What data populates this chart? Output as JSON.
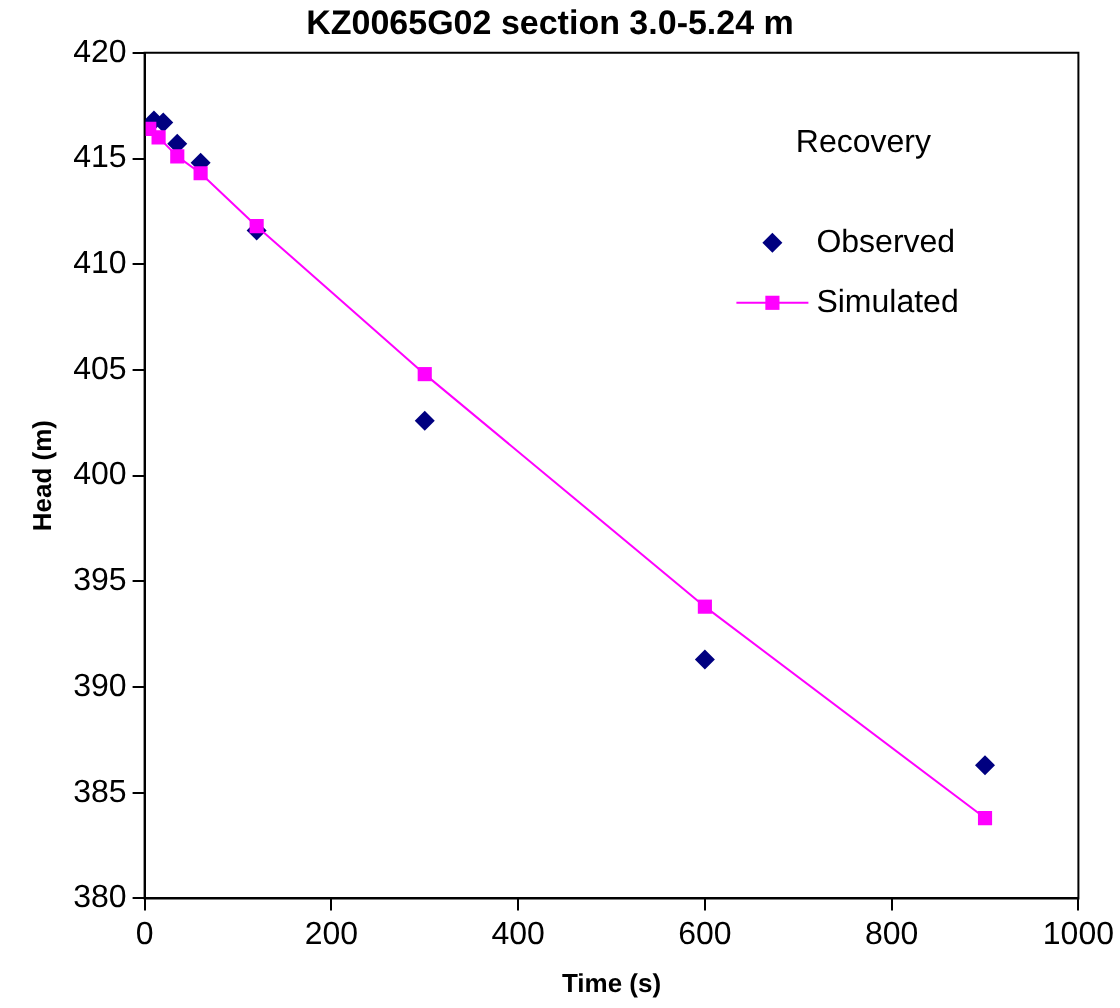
{
  "chart_data": {
    "type": "line",
    "title": "KZ0065G02 section 3.0-5.24 m",
    "xlabel": "Time (s)",
    "ylabel": "Head (m)",
    "legend_title": "Recovery",
    "legend": "top right",
    "grid": false,
    "xlim": [
      0,
      1000
    ],
    "xticks": [
      0,
      200,
      400,
      600,
      800,
      1000
    ],
    "ylim": [
      380,
      420
    ],
    "yticks": [
      380,
      385,
      390,
      395,
      400,
      405,
      410,
      415,
      420
    ],
    "series": [
      {
        "name": "Observed",
        "type": "scatter",
        "marker": "diamond",
        "color": "#000080",
        "x": [
          10,
          20,
          35,
          60,
          120,
          300,
          600,
          900
        ],
        "values": [
          416.8,
          416.7,
          415.7,
          414.8,
          411.6,
          402.6,
          391.3,
          386.3
        ]
      },
      {
        "name": "Simulated",
        "marker": "square",
        "color": "#ff00ff",
        "x": [
          5,
          15,
          35,
          60,
          120,
          300,
          600,
          900
        ],
        "values": [
          416.4,
          416.0,
          415.1,
          414.3,
          411.8,
          404.8,
          393.8,
          383.8
        ]
      }
    ]
  }
}
